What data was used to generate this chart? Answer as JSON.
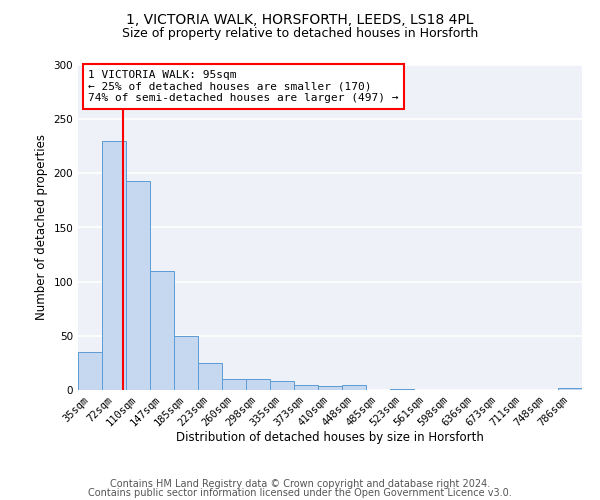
{
  "title1": "1, VICTORIA WALK, HORSFORTH, LEEDS, LS18 4PL",
  "title2": "Size of property relative to detached houses in Horsforth",
  "xlabel": "Distribution of detached houses by size in Horsforth",
  "ylabel": "Number of detached properties",
  "bin_labels": [
    "35sqm",
    "72sqm",
    "110sqm",
    "147sqm",
    "185sqm",
    "223sqm",
    "260sqm",
    "298sqm",
    "335sqm",
    "373sqm",
    "410sqm",
    "448sqm",
    "485sqm",
    "523sqm",
    "561sqm",
    "598sqm",
    "636sqm",
    "673sqm",
    "711sqm",
    "748sqm",
    "786sqm"
  ],
  "bar_heights": [
    35,
    230,
    193,
    110,
    50,
    25,
    10,
    10,
    8,
    5,
    4,
    5,
    0,
    1,
    0,
    0,
    0,
    0,
    0,
    0,
    2
  ],
  "bar_color": "#c5d8f0",
  "bar_edge_color": "#5b9bd5",
  "annotation_text": "1 VICTORIA WALK: 95sqm\n← 25% of detached houses are smaller (170)\n74% of semi-detached houses are larger (497) →",
  "annotation_box_color": "white",
  "annotation_box_edge_color": "red",
  "vline_color": "red",
  "vline_x": 1.38,
  "ylim": [
    0,
    300
  ],
  "yticks": [
    0,
    50,
    100,
    150,
    200,
    250,
    300
  ],
  "footnote1": "Contains HM Land Registry data © Crown copyright and database right 2024.",
  "footnote2": "Contains public sector information licensed under the Open Government Licence v3.0.",
  "bg_color": "#eef2f8",
  "grid_color": "white",
  "title1_fontsize": 10,
  "title2_fontsize": 9,
  "axis_label_fontsize": 8.5,
  "tick_fontsize": 7.5,
  "annotation_fontsize": 8,
  "footnote_fontsize": 7
}
